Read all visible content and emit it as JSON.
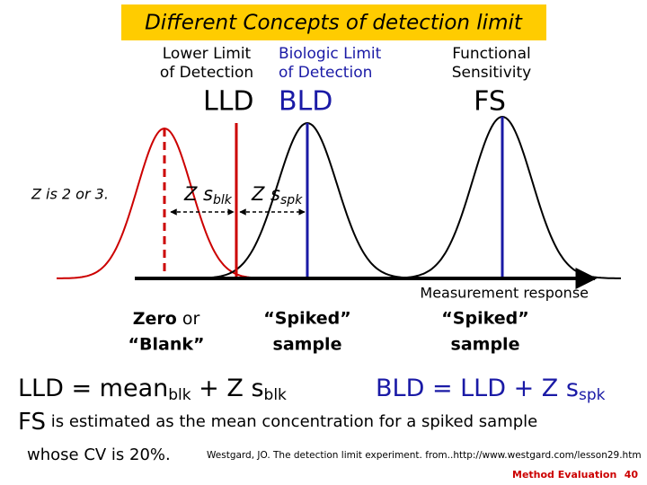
{
  "title": "Different Concepts of detection limit",
  "concepts": [
    {
      "lines": [
        "Lower Limit",
        "of Detection"
      ],
      "abbr": "LLD"
    },
    {
      "lines": [
        "Biologic Limit",
        "of Detection"
      ],
      "abbr": "BLD"
    },
    {
      "lines": [
        "Functional",
        "Sensitivity"
      ],
      "abbr": "FS"
    }
  ],
  "z_note": "Z is 2 or 3.",
  "spreads": [
    {
      "symbol": "Z s",
      "sub": "blk"
    },
    {
      "symbol": "Z s",
      "sub": "spk"
    }
  ],
  "axis_label": "Measurement response",
  "samples": [
    {
      "lines": [
        "Zero",
        "or",
        "“Blank”"
      ]
    },
    {
      "lines": [
        "“Spiked”",
        "sample"
      ]
    },
    {
      "lines": [
        "“Spiked”",
        "sample"
      ]
    }
  ],
  "formulas": {
    "lld": {
      "start": "LLD = mean",
      "sub1": "blk",
      "mid": " + Z s",
      "sub2": "blk"
    },
    "bld": {
      "start": "BLD = LLD + Z s",
      "sub": "spk"
    }
  },
  "fs_note": {
    "abbr": "FS",
    "line1": "is estimated as the mean concentration for a spiked sample",
    "line2": "whose CV is 20%."
  },
  "citation": "Westgard, JO. The detection limit experiment. from..http://www.westgard.com/lesson29.htm",
  "footer": {
    "section": "Method Evaluation",
    "page": "40"
  }
}
